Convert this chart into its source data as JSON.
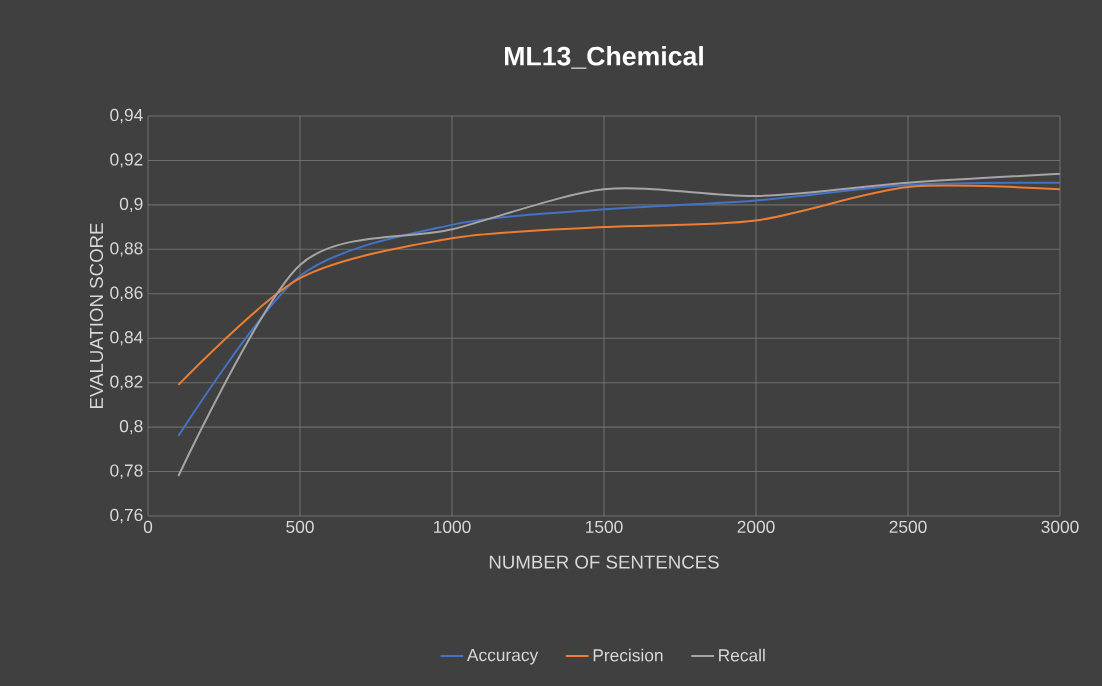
{
  "chart_data": {
    "type": "line",
    "title": "ML13_Chemical",
    "xlabel": "NUMBER OF SENTENCES",
    "ylabel": "EVALUATION SCORE",
    "x": [
      100,
      500,
      1000,
      1500,
      2000,
      2500,
      3000
    ],
    "series": [
      {
        "name": "Accuracy",
        "color": "#4472c4",
        "values": [
          0.796,
          0.868,
          0.891,
          0.898,
          0.902,
          0.909,
          0.91
        ]
      },
      {
        "name": "Precision",
        "color": "#ed7d31",
        "values": [
          0.819,
          0.867,
          0.885,
          0.89,
          0.893,
          0.908,
          0.907
        ]
      },
      {
        "name": "Recall",
        "color": "#a5a5a5",
        "values": [
          0.778,
          0.873,
          0.889,
          0.907,
          0.904,
          0.91,
          0.914
        ]
      }
    ],
    "xlim": [
      0,
      3000
    ],
    "xticks": [
      0,
      500,
      1000,
      1500,
      2000,
      2500,
      3000
    ],
    "ylim": [
      0.76,
      0.94
    ],
    "yticks": [
      {
        "value": 0.76,
        "label": "0,76"
      },
      {
        "value": 0.78,
        "label": "0,78"
      },
      {
        "value": 0.8,
        "label": "0,8"
      },
      {
        "value": 0.82,
        "label": "0,82"
      },
      {
        "value": 0.84,
        "label": "0,84"
      },
      {
        "value": 0.86,
        "label": "0,86"
      },
      {
        "value": 0.88,
        "label": "0,88"
      },
      {
        "value": 0.9,
        "label": "0,9"
      },
      {
        "value": 0.92,
        "label": "0,92"
      },
      {
        "value": 0.94,
        "label": "0,94"
      }
    ],
    "grid": true,
    "legend": "bottom",
    "marker": "none",
    "line_style": "solid"
  }
}
